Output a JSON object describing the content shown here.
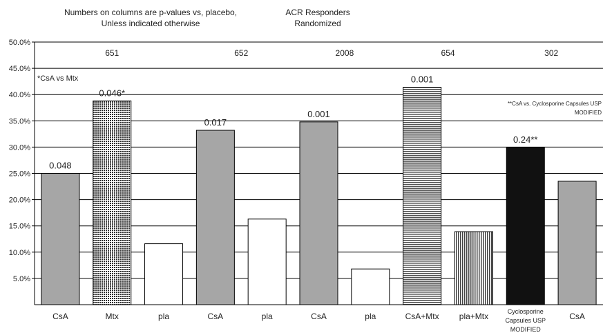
{
  "header": {
    "note_line1": "Numbers on columns are p-values vs, placebo,",
    "note_line2": "Unless indicated otherwise",
    "title_line1": "ACR Responders",
    "title_line2": "Randomized"
  },
  "colors": {
    "csa": "#a6a6a6",
    "mtx": "#333333",
    "pla": "#ffffff",
    "csa_mtx": "#555555",
    "pla_mtx": "#444444",
    "modified": "#111111",
    "grid": "#000000"
  },
  "chart_data": {
    "type": "bar",
    "title": "ACR Responders Randomized",
    "xlabel": "",
    "ylabel": "",
    "ylim": [
      0,
      50
    ],
    "y_unit": "%",
    "grid": true,
    "yticks": [
      "50.0%",
      "45.0%",
      "40.0%",
      "35.0%",
      "30.0%",
      "25.0%",
      "20.0%",
      "15.0%",
      "10.0%",
      "5.0%"
    ],
    "categories": [
      "CsA",
      "Mtx",
      "pla",
      "CsA",
      "pla",
      "CsA",
      "pla",
      "CsA+Mtx",
      "pla+Mtx",
      "Cyclosporine Capsules USP MODIFIED",
      "CsA"
    ],
    "category_label_lines": [
      [
        "CsA"
      ],
      [
        "Mtx"
      ],
      [
        "pla"
      ],
      [
        "CsA"
      ],
      [
        "pla"
      ],
      [
        "CsA"
      ],
      [
        "pla"
      ],
      [
        "CsA+Mtx"
      ],
      [
        "pla+Mtx"
      ],
      [
        "Cyclosporine",
        "Capsules USP",
        "MODIFIED"
      ],
      [
        "CsA"
      ]
    ],
    "values": [
      25.0,
      38.8,
      11.6,
      33.2,
      16.3,
      34.8,
      6.8,
      41.4,
      13.9,
      29.9,
      23.5
    ],
    "patterns": [
      "csa",
      "mtx",
      "pla",
      "csa",
      "pla",
      "csa",
      "pla",
      "csa_mtx",
      "pla_mtx",
      "modified",
      "csa"
    ],
    "value_labels": [
      "0.048",
      "0.046*",
      "",
      "0.017",
      "",
      "0.001",
      "",
      "0.001",
      "",
      "0.24**",
      ""
    ],
    "study_groups": [
      {
        "label": "651",
        "bars": [
          0,
          1,
          2
        ]
      },
      {
        "label": "652",
        "bars": [
          3,
          4
        ]
      },
      {
        "label": "2008",
        "bars": [
          5,
          6
        ]
      },
      {
        "label": "654",
        "bars": [
          7,
          8
        ]
      },
      {
        "label": "302",
        "bars": [
          9,
          10
        ]
      }
    ],
    "annotations": {
      "csa_vs_mtx": "*CsA vs Mtx",
      "modified_note_line1": "**CsA vs. Cyclosporine Capsules USP",
      "modified_note_line2": "MODIFIED"
    }
  }
}
